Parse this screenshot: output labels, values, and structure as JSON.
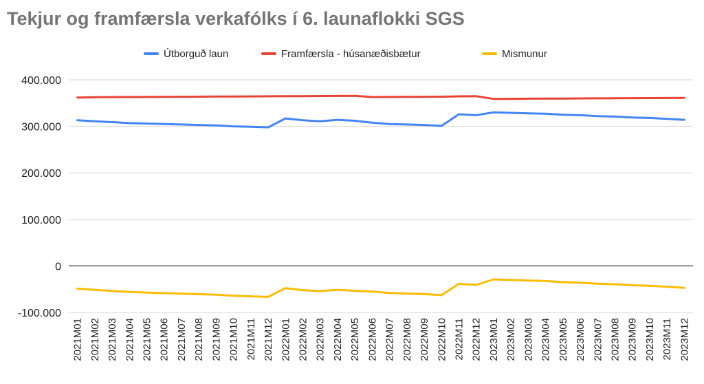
{
  "chart_data": {
    "type": "line",
    "title": "Tekjur og framfærsla verkafólks í 6. launaflokki SGS",
    "xlabel": "",
    "ylabel": "",
    "ylim": [
      -100000,
      400000
    ],
    "yticks": [
      400000,
      300000,
      200000,
      100000,
      0,
      -100000
    ],
    "ytick_labels": [
      "400.000",
      "300.000",
      "200.000",
      "100.000",
      "0",
      "-100.000"
    ],
    "grid": true,
    "legend_position": "top",
    "categories": [
      "2021M01",
      "2021M02",
      "2021M03",
      "2021M04",
      "2021M05",
      "2021M06",
      "2021M07",
      "2021M08",
      "2021M09",
      "2021M10",
      "2021M11",
      "2021M12",
      "2022M01",
      "2022M02",
      "2022M03",
      "2022M04",
      "2022M05",
      "2022M06",
      "2022M07",
      "2022M08",
      "2022M09",
      "2022M10",
      "2022M11",
      "2022M12",
      "2023M01",
      "2023M02",
      "2023M03",
      "2023M04",
      "2023M05",
      "2023M06",
      "2023M07",
      "2023M08",
      "2023M09",
      "2023M10",
      "2023M11",
      "2023M12"
    ],
    "series": [
      {
        "name": "Útborguð laun",
        "color": "#4285f4",
        "values": [
          313000,
          311000,
          309000,
          307000,
          306000,
          305000,
          304000,
          303000,
          302000,
          300000,
          299000,
          298000,
          317000,
          313000,
          311000,
          314000,
          312000,
          308000,
          305000,
          304000,
          303000,
          301000,
          326000,
          324000,
          330000,
          329000,
          328000,
          327000,
          325000,
          324000,
          322000,
          321000,
          319000,
          318000,
          316000,
          314000
        ]
      },
      {
        "name": "Framfærsla - húsanæðisbætur",
        "color": "#ea4335",
        "values": [
          362000,
          362500,
          362800,
          363000,
          363200,
          363400,
          363600,
          363800,
          364000,
          364200,
          364400,
          364600,
          364800,
          365000,
          365200,
          365400,
          365600,
          363000,
          363200,
          363400,
          363600,
          363800,
          364500,
          364800,
          359000,
          359200,
          359400,
          359600,
          359800,
          360000,
          360200,
          360400,
          360600,
          360800,
          361000,
          361200
        ]
      },
      {
        "name": "Mismunur",
        "color": "#fbbc04",
        "values": [
          -49000,
          -51500,
          -53800,
          -56000,
          -57200,
          -58400,
          -59600,
          -60800,
          -62000,
          -64200,
          -65400,
          -66600,
          -47800,
          -52000,
          -54200,
          -51400,
          -53600,
          -55000,
          -58200,
          -59400,
          -60600,
          -62800,
          -38500,
          -40800,
          -29000,
          -30200,
          -31400,
          -32600,
          -34800,
          -36000,
          -38200,
          -39400,
          -41600,
          -42800,
          -45000,
          -47200
        ]
      }
    ]
  }
}
